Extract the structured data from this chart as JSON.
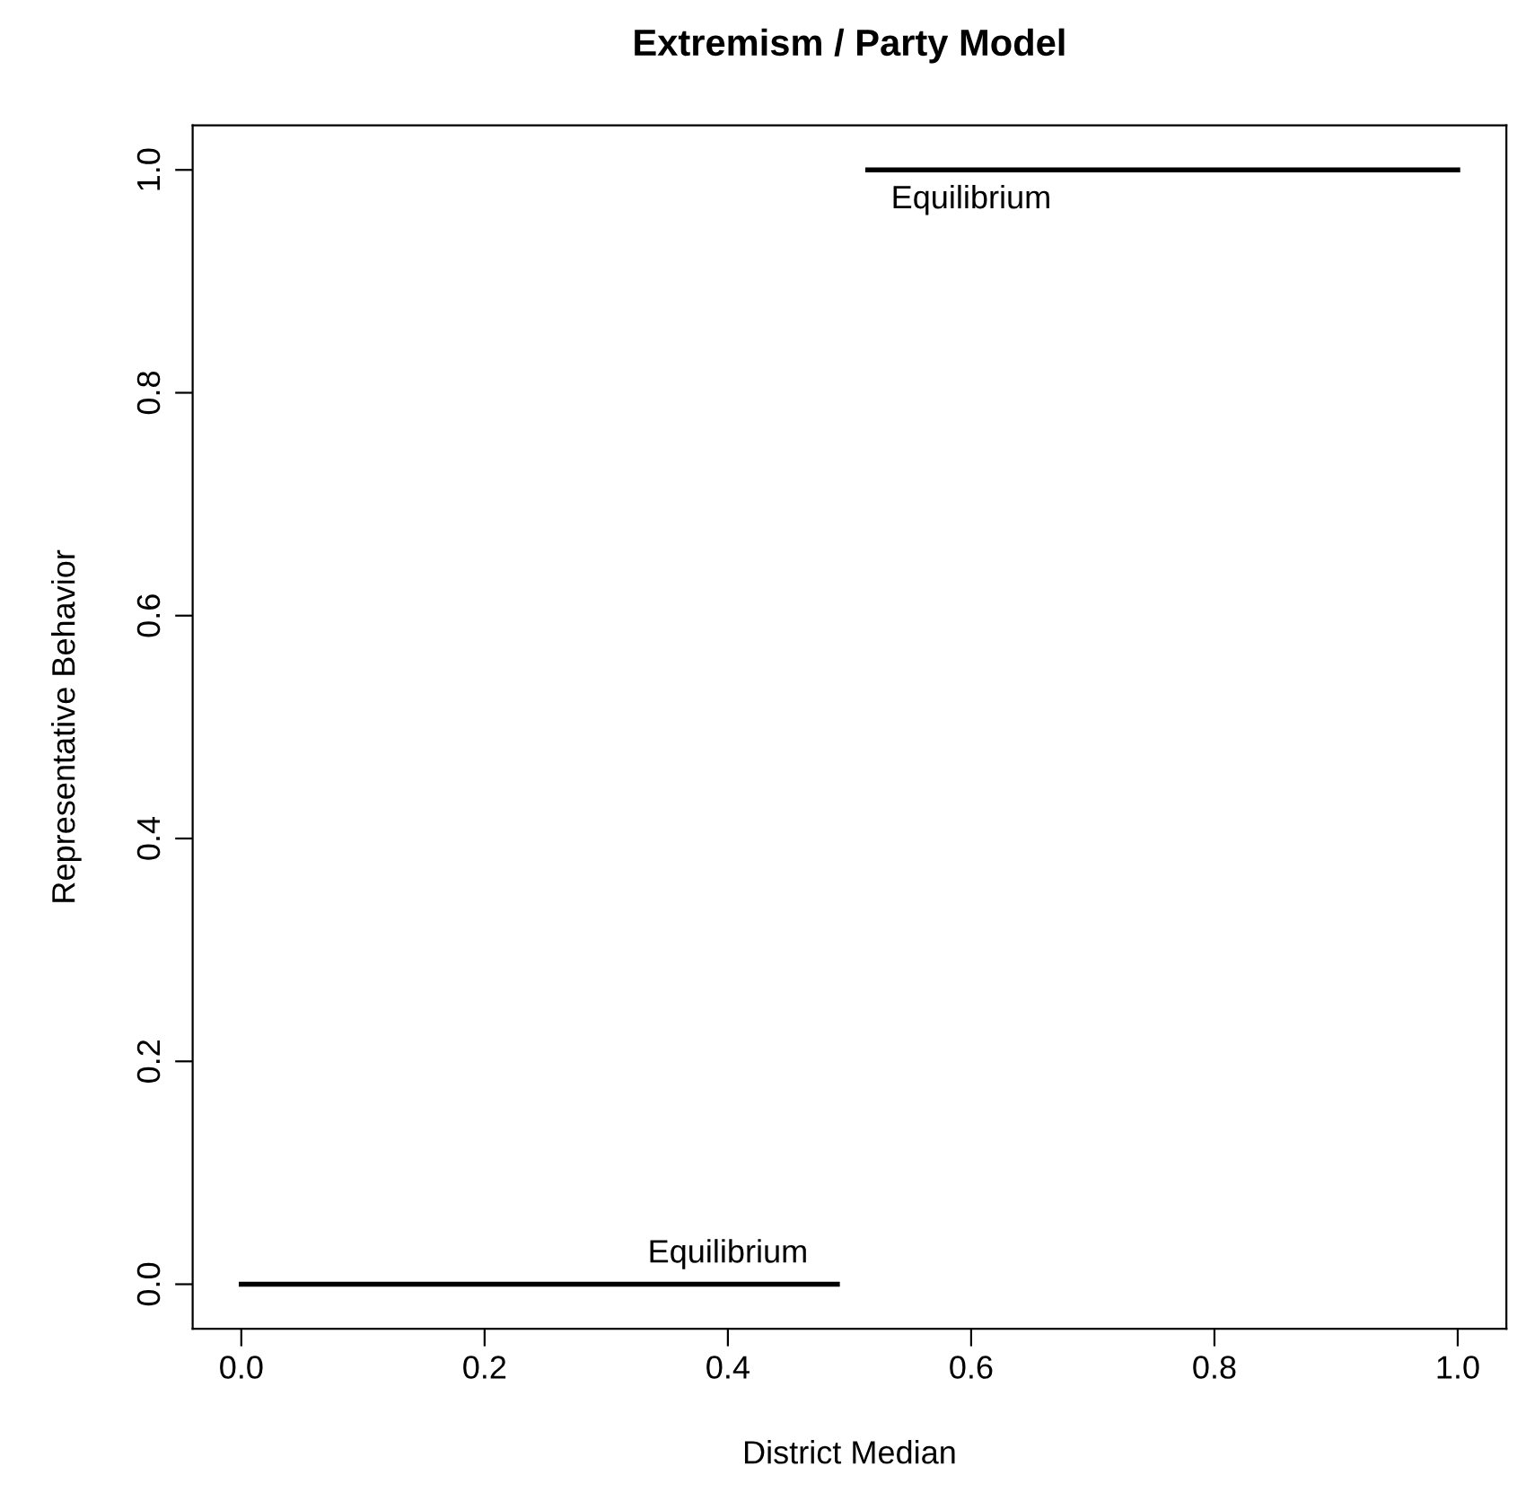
{
  "chart_data": {
    "type": "line",
    "title": "Extremism / Party Model",
    "xlabel": "District Median",
    "ylabel": "Representative Behavior",
    "series": [
      {
        "x": [
          0.0,
          0.49
        ],
        "values": [
          0.0,
          0.0
        ],
        "color": "#000000"
      },
      {
        "x": [
          0.515,
          1.0
        ],
        "values": [
          1.0,
          1.0
        ],
        "color": "#000000"
      }
    ],
    "annotations": [
      {
        "text": "Equilibrium",
        "x": 0.4,
        "y": 0.0
      },
      {
        "text": "Equilibrium",
        "x": 0.6,
        "y": 1.0
      }
    ],
    "xlim": [
      -0.04,
      1.04
    ],
    "ylim": [
      -0.04,
      1.04
    ],
    "xticks": [
      {
        "value": 0,
        "label": "0.0"
      },
      0.2,
      0.4,
      0.6,
      0.8,
      {
        "value": 1,
        "label": "1.0"
      }
    ],
    "yticks": [
      {
        "value": 0,
        "label": "0.0"
      },
      0.2,
      0.4,
      0.6,
      0.8,
      {
        "value": 1,
        "label": "1.0"
      }
    ],
    "grid": false,
    "legend": false,
    "marker": "none",
    "line_style": "solid"
  }
}
